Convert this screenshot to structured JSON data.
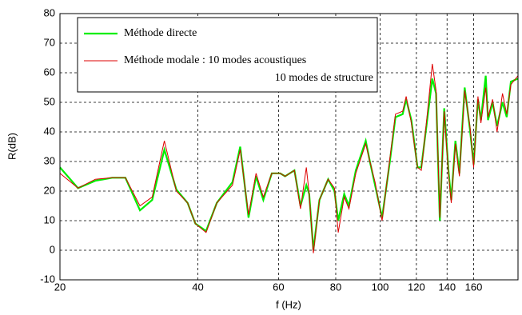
{
  "chart_data": {
    "type": "line",
    "x_label": "f (Hz)",
    "y_label": "R(dB)",
    "log_x": true,
    "grid": true,
    "legend_position": "upper left",
    "xlim": [
      20,
      200
    ],
    "xticks": [
      20,
      40,
      60,
      80,
      100,
      120,
      140,
      160
    ],
    "ylim": [
      -10,
      80
    ],
    "yticks": [
      -10,
      0,
      10,
      20,
      30,
      40,
      50,
      60,
      70,
      80
    ],
    "x": [
      20,
      21.9,
      23.9,
      26,
      27.8,
      29.9,
      31.8,
      33.8,
      35.9,
      38,
      39.5,
      41.7,
      44,
      47.6,
      49.5,
      51.6,
      53.6,
      55.6,
      58,
      60.5,
      62,
      65,
      67,
      69,
      70,
      71.5,
      73.7,
      77,
      79.5,
      81,
      83.5,
      85.5,
      88.5,
      93,
      95,
      97.5,
      101,
      105,
      108,
      112,
      114,
      117,
      120.7,
      123,
      126,
      130,
      132.5,
      135,
      138,
      141,
      143,
      146,
      149,
      153,
      157,
      160,
      163.5,
      166,
      170,
      172,
      176,
      180,
      185,
      189,
      193,
      200
    ],
    "series": [
      {
        "name": "Méthode directe",
        "color": "#00ee00",
        "values": [
          28,
          21,
          23.5,
          24.5,
          24.5,
          13.5,
          17,
          34,
          20.5,
          16,
          9,
          6.5,
          16,
          23,
          35,
          11,
          25,
          17,
          26,
          26,
          25,
          27,
          15,
          22,
          19,
          0,
          17,
          24,
          20,
          10,
          19,
          15,
          27,
          37,
          30,
          22,
          11,
          30,
          45,
          46,
          51,
          44,
          28,
          28,
          41,
          58,
          53,
          10,
          48,
          27,
          17,
          37,
          26,
          55,
          41,
          29,
          51,
          44,
          59,
          44,
          50,
          42,
          50,
          45,
          57,
          58
        ]
      },
      {
        "name": "Méthode modale :  10 modes acoustiques",
        "name_line2": "10 modes de structure",
        "color": "#dd0000",
        "values": [
          26,
          21,
          24,
          24.5,
          24.5,
          15,
          18,
          37,
          20,
          16,
          9,
          6,
          16,
          22,
          34,
          12,
          26,
          18,
          26,
          26,
          25,
          27,
          14,
          28,
          19,
          -1,
          17,
          24,
          21,
          6,
          18,
          14,
          26,
          36,
          30,
          23,
          10,
          31,
          46,
          47,
          52,
          43,
          28,
          27,
          42,
          63,
          54,
          11,
          47,
          26,
          16,
          36,
          25,
          54,
          42,
          28,
          52,
          43,
          55,
          45,
          51,
          40,
          53,
          46,
          56,
          59
        ]
      }
    ]
  }
}
